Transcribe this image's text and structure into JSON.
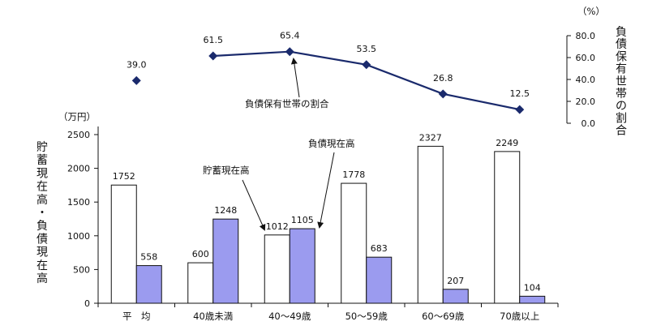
{
  "chart_data": [
    {
      "type": "bar",
      "categories": [
        "平　均",
        "40歳未満",
        "40～49歳",
        "50～59歳",
        "60～69歳",
        "70歳以上"
      ],
      "series": [
        {
          "name": "貯蓄現在高",
          "values": [
            1752,
            600,
            1012,
            1778,
            2327,
            2249
          ],
          "color": "#ffffff"
        },
        {
          "name": "負債現在高",
          "values": [
            558,
            1248,
            1105,
            683,
            207,
            104
          ],
          "color": "#9b9bef"
        }
      ],
      "ylabel": "貯蓄現在高・負債現在高",
      "yunit": "（万円）",
      "ylim": [
        0,
        2500
      ],
      "yticks": [
        0,
        500,
        1000,
        1500,
        2000,
        2500
      ],
      "grid": false
    },
    {
      "type": "line",
      "categories": [
        "平　均",
        "40歳未満",
        "40～49歳",
        "50～59歳",
        "60～69歳",
        "70歳以上"
      ],
      "series": [
        {
          "name": "負債保有世帯の割合",
          "values": [
            39.0,
            61.5,
            65.4,
            53.5,
            26.8,
            12.5
          ],
          "color": "#1a2a6c"
        }
      ],
      "value_labels": [
        "39.0",
        "61.5",
        "65.4",
        "53.5",
        "26.8",
        "12.5"
      ],
      "ylabel": "負債保有世帯の割合",
      "yunit": "（%）",
      "ylim": [
        0,
        80
      ],
      "yticks": [
        "0.0",
        "20.0",
        "40.0",
        "60.0",
        "80.0"
      ],
      "connect_first": false
    }
  ],
  "annotations": {
    "savings": "貯蓄現在高",
    "debt": "負債現在高",
    "ratio": "負債保有世帯の割合"
  }
}
